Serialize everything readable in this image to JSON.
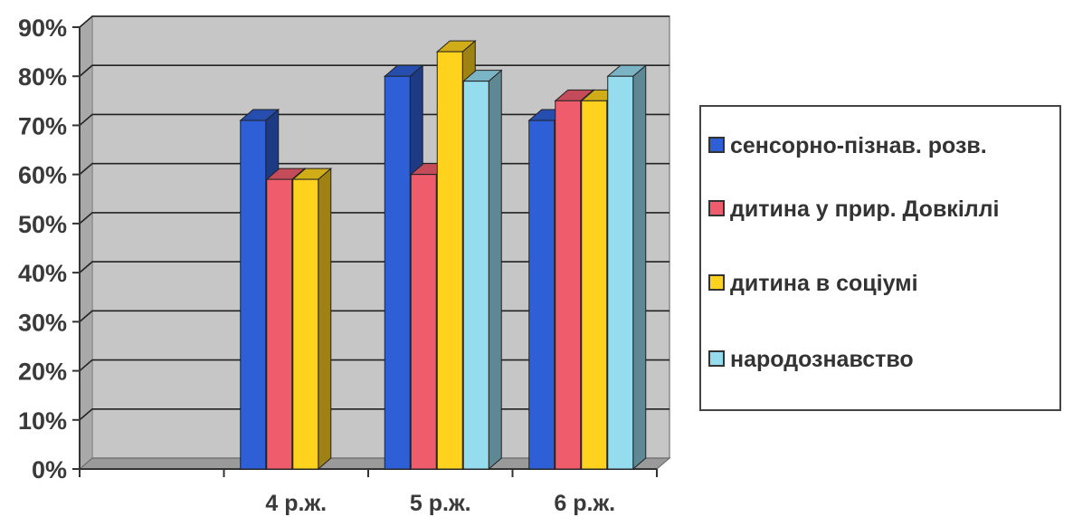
{
  "chart_data": {
    "type": "bar",
    "style": "3d-clustered",
    "categories": [
      "",
      "4 р.ж.",
      "5 р.ж.",
      "6 р.ж."
    ],
    "series": [
      {
        "name": "сенсорно-пізнав. розв.",
        "color": "#2e5fd6",
        "values": [
          null,
          71,
          80,
          71
        ]
      },
      {
        "name": "дитина у прир. Довкіллі",
        "color": "#ef5c6c",
        "values": [
          null,
          59,
          60,
          75
        ]
      },
      {
        "name": "дитина в соціумі",
        "color": "#ffd21e",
        "values": [
          null,
          59,
          85,
          75
        ]
      },
      {
        "name": "народознавство",
        "color": "#96dcef",
        "values": [
          null,
          null,
          79,
          80
        ]
      }
    ],
    "yticks": [
      "0%",
      "10%",
      "20%",
      "30%",
      "40%",
      "50%",
      "60%",
      "70%",
      "80%",
      "90%"
    ],
    "ylim": [
      0,
      90
    ],
    "grid": true,
    "legend_position": "right",
    "title": "",
    "xlabel": "",
    "ylabel": ""
  },
  "legend": {
    "items": [
      {
        "label": "сенсорно-пізнав. розв.",
        "color": "#2e5fd6"
      },
      {
        "label": "дитина у прир. Довкіллі",
        "color": "#ef5c6c"
      },
      {
        "label": "дитина в соціумі",
        "color": "#ffd21e"
      },
      {
        "label": "народознавство",
        "color": "#96dcef"
      }
    ]
  }
}
